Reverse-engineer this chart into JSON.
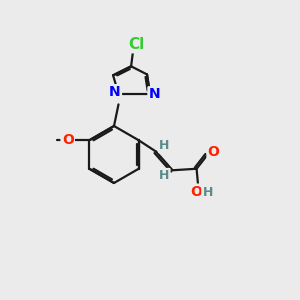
{
  "bg_color": "#ebebeb",
  "bond_color": "#1a1a1a",
  "bond_width": 1.6,
  "atom_colors": {
    "Cl": "#33cc33",
    "N": "#0000ff",
    "O": "#ff2200",
    "H": "#5a8a8a",
    "C": "#1a1a1a"
  },
  "font_size_atom": 10,
  "font_size_h": 9,
  "font_size_cl": 11
}
